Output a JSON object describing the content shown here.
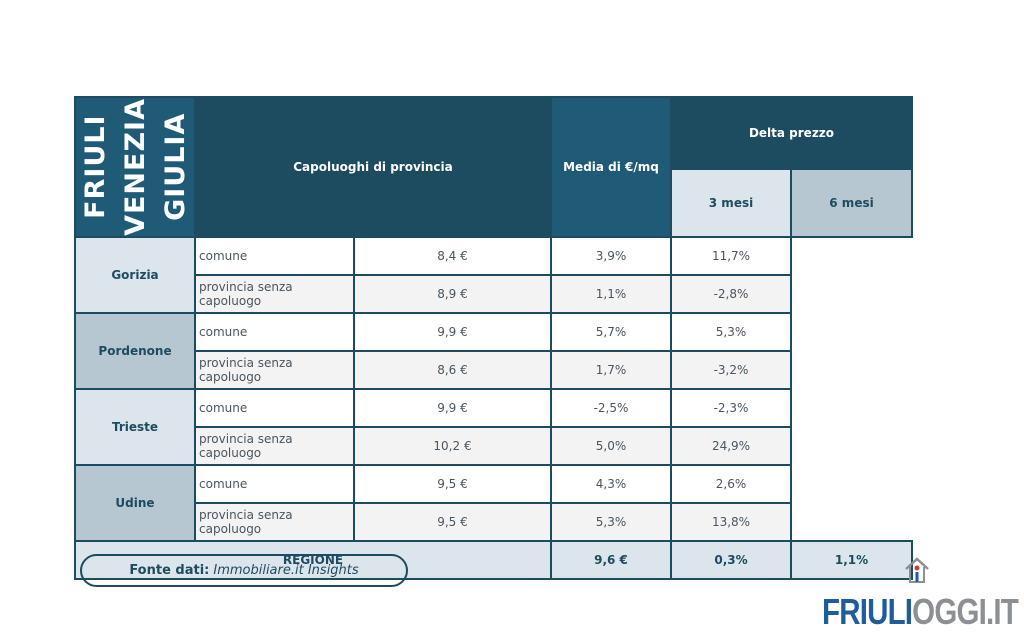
{
  "region_title": "FRIULI VENEZIA GIULIA",
  "headers": {
    "capoluoghi": "Capoluoghi di provincia",
    "media": "Media di €/mq",
    "delta": "Delta prezzo",
    "m3": "3 mesi",
    "m6": "6 mesi"
  },
  "rows": [
    {
      "city": "Gorizia",
      "items": [
        {
          "type": "comune",
          "media": "8,4 €",
          "m3": "3,9%",
          "m6": "11,7%"
        },
        {
          "type": "provincia senza capoluogo",
          "media": "8,9 €",
          "m3": "1,1%",
          "m6": "-2,8%"
        }
      ]
    },
    {
      "city": "Pordenone",
      "items": [
        {
          "type": "comune",
          "media": "9,9 €",
          "m3": "5,7%",
          "m6": "5,3%"
        },
        {
          "type": "provincia senza capoluogo",
          "media": "8,6 €",
          "m3": "1,7%",
          "m6": "-3,2%"
        }
      ]
    },
    {
      "city": "Trieste",
      "items": [
        {
          "type": "comune",
          "media": "9,9 €",
          "m3": "-2,5%",
          "m6": "-2,3%"
        },
        {
          "type": "provincia senza capoluogo",
          "media": "10,2 €",
          "m3": "5,0%",
          "m6": "24,9%"
        }
      ]
    },
    {
      "city": "Udine",
      "items": [
        {
          "type": "comune",
          "media": "9,5 €",
          "m3": "4,3%",
          "m6": "2,6%"
        },
        {
          "type": "provincia senza capoluogo",
          "media": "9,5 €",
          "m3": "5,3%",
          "m6": "13,8%"
        }
      ]
    }
  ],
  "total": {
    "label": "REGIONE",
    "media": "9,6 €",
    "m3": "0,3%",
    "m6": "1,1%"
  },
  "source": {
    "label": "Fonte dati:",
    "value": "Immobiliare.it Insights"
  },
  "logo": {
    "part1": "FRIULI",
    "part2": "OGGI.IT"
  }
}
